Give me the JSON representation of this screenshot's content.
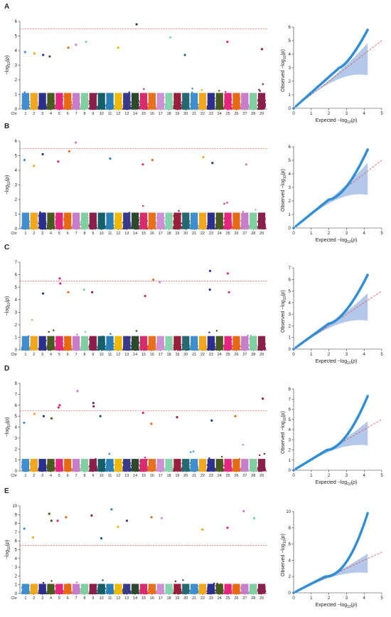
{
  "figure": {
    "chromosome_axis_label": "Chr",
    "chromosomes": [
      "1",
      "2",
      "3",
      "4",
      "5",
      "6",
      "7",
      "8",
      "9",
      "10",
      "11",
      "12",
      "13",
      "14",
      "15",
      "16",
      "17",
      "18",
      "19",
      "20",
      "21",
      "22",
      "23",
      "24",
      "25",
      "26",
      "27",
      "28",
      "29"
    ],
    "chromosome_colors": [
      "#3f8fd0",
      "#f2a71b",
      "#2b2f8f",
      "#4a5a1e",
      "#e6267e",
      "#e86a10",
      "#c77dc9",
      "#7fcf9f",
      "#8a1f4c",
      "#14606a",
      "#2a7fb8",
      "#f0b800",
      "#3a3a8c",
      "#2b4a2b",
      "#d82a6f",
      "#e8701a",
      "#cf8fd5",
      "#86d4ad",
      "#9a1f3c",
      "#256870",
      "#3f8fd0",
      "#f2a71b",
      "#2b2f8f",
      "#4a5a1e",
      "#e6267e",
      "#e86a10",
      "#c77dc9",
      "#7fcf9f",
      "#8a1f4c"
    ],
    "qq_point_color": "#2f8fd8",
    "qq_band_color": "#9bb6e2",
    "threshold_color": "#e05050"
  },
  "chart_data": [
    {
      "panel": "A",
      "type": "scatter",
      "plot": "manhattan",
      "ylabel": "−log10(p)",
      "ylim": [
        0,
        6
      ],
      "yticks": [
        0,
        1,
        2,
        3,
        4,
        5,
        6
      ],
      "threshold": 5.5,
      "top_points": [
        {
          "chr": 1,
          "y": 3.9
        },
        {
          "chr": 2,
          "y": 3.8
        },
        {
          "chr": 3,
          "y": 3.7
        },
        {
          "chr": 4,
          "y": 3.6
        },
        {
          "chr": 6,
          "y": 4.2
        },
        {
          "chr": 7,
          "y": 4.4
        },
        {
          "chr": 8,
          "y": 4.6
        },
        {
          "chr": 12,
          "y": 4.2
        },
        {
          "chr": 14,
          "y": 5.8
        },
        {
          "chr": 18,
          "y": 4.9
        },
        {
          "chr": 20,
          "y": 3.7
        },
        {
          "chr": 25,
          "y": 4.6
        },
        {
          "chr": 29,
          "y": 4.1
        }
      ]
    },
    {
      "panel": "A",
      "type": "scatter",
      "plot": "qq",
      "xlabel": "Expected −log10(p)",
      "ylabel": "Observed −log10(p)",
      "xlim": [
        0,
        5
      ],
      "ylim": [
        0,
        6
      ],
      "xticks": [
        0,
        1,
        2,
        3,
        4,
        5
      ],
      "yticks": [
        0,
        1,
        2,
        3,
        4,
        5,
        6
      ],
      "max_expected": 4.2,
      "max_observed": 5.8,
      "inflection": [
        2.6,
        3.0
      ],
      "curvature": 1.4
    },
    {
      "panel": "B",
      "type": "scatter",
      "plot": "manhattan",
      "ylabel": "−log10(p)",
      "ylim": [
        0,
        6
      ],
      "yticks": [
        0,
        1,
        2,
        3,
        4,
        5,
        6
      ],
      "threshold": 5.5,
      "top_points": [
        {
          "chr": 1,
          "y": 4.7
        },
        {
          "chr": 2,
          "y": 4.3
        },
        {
          "chr": 3,
          "y": 5.1
        },
        {
          "chr": 5,
          "y": 4.6
        },
        {
          "chr": 6,
          "y": 5.3
        },
        {
          "chr": 7,
          "y": 5.9
        },
        {
          "chr": 11,
          "y": 4.8
        },
        {
          "chr": 15,
          "y": 4.4
        },
        {
          "chr": 16,
          "y": 4.7
        },
        {
          "chr": 22,
          "y": 4.9
        },
        {
          "chr": 23,
          "y": 4.5
        },
        {
          "chr": 27,
          "y": 4.4
        }
      ]
    },
    {
      "panel": "B",
      "type": "scatter",
      "plot": "qq",
      "xlabel": "Expected −log10(p)",
      "ylabel": "Observed −log10(p)",
      "xlim": [
        0,
        5
      ],
      "ylim": [
        0,
        6
      ],
      "xticks": [
        0,
        1,
        2,
        3,
        4,
        5
      ],
      "yticks": [
        0,
        1,
        2,
        3,
        4,
        5,
        6
      ],
      "max_expected": 4.2,
      "max_observed": 5.8,
      "inflection": [
        2.0,
        2.1
      ],
      "curvature": 1.7
    },
    {
      "panel": "C",
      "type": "scatter",
      "plot": "manhattan",
      "ylabel": "−log10(p)",
      "ylim": [
        0,
        7
      ],
      "yticks": [
        0,
        1,
        2,
        3,
        4,
        5,
        6,
        7
      ],
      "threshold": 5.5,
      "top_points": [
        {
          "chr": 3,
          "y": 4.5
        },
        {
          "chr": 5,
          "y": 5.7
        },
        {
          "chr": 5,
          "y": 5.3
        },
        {
          "chr": 6,
          "y": 4.6
        },
        {
          "chr": 8,
          "y": 4.8
        },
        {
          "chr": 9,
          "y": 4.6
        },
        {
          "chr": 15,
          "y": 4.3
        },
        {
          "chr": 16,
          "y": 5.6
        },
        {
          "chr": 17,
          "y": 5.4
        },
        {
          "chr": 23,
          "y": 6.3
        },
        {
          "chr": 23,
          "y": 4.8
        },
        {
          "chr": 25,
          "y": 6.1
        },
        {
          "chr": 25,
          "y": 4.6
        }
      ]
    },
    {
      "panel": "C",
      "type": "scatter",
      "plot": "qq",
      "xlabel": "Expected −log10(p)",
      "ylabel": "Observed −log10(p)",
      "xlim": [
        0,
        5
      ],
      "ylim": [
        0,
        7
      ],
      "xticks": [
        0,
        1,
        2,
        3,
        4,
        5
      ],
      "yticks": [
        0,
        1,
        2,
        3,
        4,
        5,
        6,
        7
      ],
      "max_expected": 4.2,
      "max_observed": 6.4,
      "inflection": [
        2.0,
        2.2
      ],
      "curvature": 1.6
    },
    {
      "panel": "D",
      "type": "scatter",
      "plot": "manhattan",
      "ylabel": "−log10(p)",
      "ylim": [
        0,
        8
      ],
      "yticks": [
        0,
        1,
        2,
        3,
        4,
        5,
        6,
        7,
        8
      ],
      "threshold": 5.5,
      "top_points": [
        {
          "chr": 1,
          "y": 4.4
        },
        {
          "chr": 2,
          "y": 5.2
        },
        {
          "chr": 3,
          "y": 5.0
        },
        {
          "chr": 4,
          "y": 4.8
        },
        {
          "chr": 5,
          "y": 6.0
        },
        {
          "chr": 5,
          "y": 5.8
        },
        {
          "chr": 7,
          "y": 7.3
        },
        {
          "chr": 9,
          "y": 6.2
        },
        {
          "chr": 9,
          "y": 5.9
        },
        {
          "chr": 10,
          "y": 5.0
        },
        {
          "chr": 15,
          "y": 5.3
        },
        {
          "chr": 16,
          "y": 4.3
        },
        {
          "chr": 19,
          "y": 4.9
        },
        {
          "chr": 23,
          "y": 4.6
        },
        {
          "chr": 26,
          "y": 5.0
        },
        {
          "chr": 29,
          "y": 6.6
        }
      ]
    },
    {
      "panel": "D",
      "type": "scatter",
      "plot": "qq",
      "xlabel": "Expected −log10(p)",
      "ylabel": "Observed −log10(p)",
      "xlim": [
        0,
        5
      ],
      "ylim": [
        0,
        8
      ],
      "xticks": [
        0,
        1,
        2,
        3,
        4,
        5
      ],
      "yticks": [
        0,
        1,
        2,
        3,
        4,
        5,
        6,
        7,
        8
      ],
      "max_expected": 4.2,
      "max_observed": 7.3,
      "inflection": [
        1.9,
        2.0
      ],
      "curvature": 1.8
    },
    {
      "panel": "E",
      "type": "scatter",
      "plot": "manhattan",
      "ylabel": "−log10(p)",
      "ylim": [
        0,
        10
      ],
      "yticks": [
        0,
        1,
        2,
        3,
        4,
        5,
        6,
        7,
        8,
        9,
        10
      ],
      "threshold": 5.5,
      "top_points": [
        {
          "chr": 1,
          "y": 7.4
        },
        {
          "chr": 2,
          "y": 6.4
        },
        {
          "chr": 4,
          "y": 9.1
        },
        {
          "chr": 4,
          "y": 8.3
        },
        {
          "chr": 5,
          "y": 8.3
        },
        {
          "chr": 6,
          "y": 8.7
        },
        {
          "chr": 9,
          "y": 8.9
        },
        {
          "chr": 10,
          "y": 6.3
        },
        {
          "chr": 11,
          "y": 9.6
        },
        {
          "chr": 12,
          "y": 7.6
        },
        {
          "chr": 13,
          "y": 8.3
        },
        {
          "chr": 16,
          "y": 8.7
        },
        {
          "chr": 17,
          "y": 8.6
        },
        {
          "chr": 22,
          "y": 7.3
        },
        {
          "chr": 25,
          "y": 7.5
        },
        {
          "chr": 27,
          "y": 9.4
        },
        {
          "chr": 28,
          "y": 8.6
        }
      ]
    },
    {
      "panel": "E",
      "type": "scatter",
      "plot": "qq",
      "xlabel": "Expected −log10(p)",
      "ylabel": "Observed −log10(p)",
      "xlim": [
        0,
        5
      ],
      "ylim": [
        0,
        10
      ],
      "xticks": [
        0,
        1,
        2,
        3,
        4,
        5
      ],
      "yticks": [
        0,
        2,
        4,
        6,
        8,
        10
      ],
      "max_expected": 4.2,
      "max_observed": 9.8,
      "inflection": [
        1.8,
        2.0
      ],
      "curvature": 2.1
    }
  ]
}
